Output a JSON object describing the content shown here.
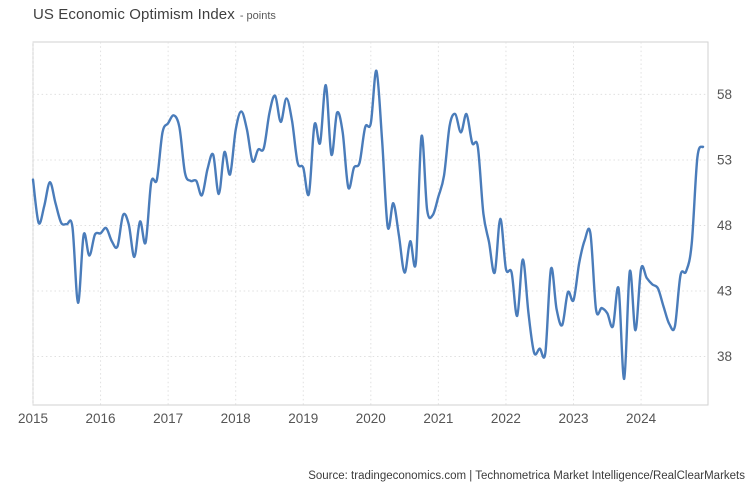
{
  "header": {
    "title": "US Economic Optimism Index",
    "unit_label": "- points"
  },
  "footer": {
    "source_text": "Source: tradingeconomics.com | Technometrica Market Intelligence/RealClearMarkets"
  },
  "colors": {
    "line": "#4a7cba",
    "grid": "#e0e0e0",
    "plot_border": "#d2d2d2",
    "axis_text": "#555555",
    "background": "#ffffff"
  },
  "chart_data": {
    "type": "line",
    "title": "US Economic Optimism Index",
    "unit": "points",
    "frequency": "monthly",
    "start": "2015-01",
    "end": "2024-12",
    "grid": "dotted",
    "legend": "none",
    "ylim": [
      34.3,
      62.0
    ],
    "y_ticks": [
      38,
      43,
      48,
      53,
      58
    ],
    "x_tick_labels": [
      "2015",
      "2016",
      "2017",
      "2018",
      "2019",
      "2020",
      "2021",
      "2022",
      "2023",
      "2024"
    ],
    "series": [
      {
        "name": "US Economic Optimism Index",
        "values": [
          51.5,
          48.2,
          49.5,
          51.3,
          49.7,
          48.2,
          48.1,
          47.9,
          42.1,
          47.3,
          45.7,
          47.3,
          47.4,
          47.8,
          46.8,
          46.4,
          48.8,
          48.1,
          45.6,
          48.3,
          46.7,
          51.3,
          51.5,
          55.1,
          55.8,
          56.4,
          55.5,
          52.0,
          51.4,
          51.4,
          50.3,
          52.3,
          53.4,
          50.4,
          53.6,
          51.9,
          55.3,
          56.7,
          55.3,
          52.9,
          53.8,
          53.9,
          56.6,
          57.9,
          55.9,
          57.7,
          56.0,
          52.8,
          52.4,
          50.4,
          55.7,
          54.3,
          58.7,
          53.4,
          56.6,
          55.1,
          50.9,
          52.4,
          52.8,
          55.5,
          55.8,
          59.8,
          54.5,
          47.9,
          49.7,
          47.2,
          44.4,
          46.8,
          45.2,
          54.8,
          49.2,
          48.8,
          50.2,
          51.8,
          55.6,
          56.5,
          55.1,
          56.5,
          54.3,
          54.0,
          48.9,
          46.7,
          44.4,
          48.5,
          44.7,
          44.4,
          41.1,
          45.4,
          41.3,
          38.3,
          38.6,
          38.3,
          44.7,
          41.6,
          40.4,
          42.9,
          42.3,
          45.1,
          46.9,
          47.4,
          41.6,
          41.7,
          41.3,
          40.3,
          43.2,
          36.3,
          44.5,
          40.0,
          44.7,
          44.0,
          43.5,
          43.2,
          41.8,
          40.5,
          40.3,
          44.2,
          44.5,
          46.6,
          53.2,
          54.0
        ]
      }
    ]
  }
}
